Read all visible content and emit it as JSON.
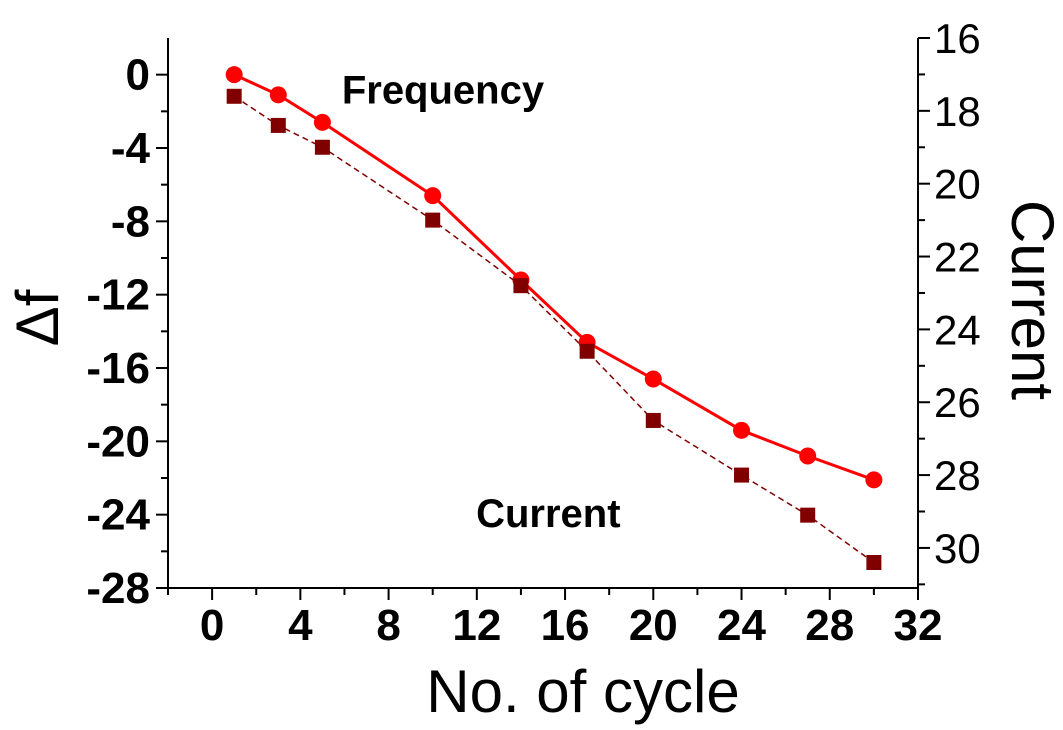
{
  "chart_data": {
    "type": "line",
    "xlabel": "No. of cycle",
    "ylabel_left": "Δf",
    "ylabel_right": "Current",
    "xlim": [
      -2,
      32
    ],
    "ylim_left": [
      -28,
      2
    ],
    "ylim_right": [
      31.1,
      16
    ],
    "x_ticks": [
      0,
      4,
      8,
      12,
      16,
      20,
      24,
      28,
      32
    ],
    "y_ticks_left": [
      0,
      -4,
      -8,
      -12,
      -16,
      -20,
      -24,
      -28
    ],
    "y_ticks_right": [
      16,
      18,
      20,
      22,
      24,
      26,
      28,
      30
    ],
    "annotations": [
      {
        "text": "Frequency",
        "x": 12,
        "y": -0.8
      },
      {
        "text": "Current",
        "x": 16.5,
        "y": -23.9
      }
    ],
    "series": [
      {
        "axis": "left",
        "marker": "circle",
        "line": "solid",
        "color": "#ff0000",
        "x": [
          1,
          3,
          5,
          10,
          14,
          17,
          20,
          24,
          27,
          30
        ],
        "values": [
          0,
          -1.1,
          -2.6,
          -6.6,
          -11.2,
          -14.6,
          -16.6,
          -19.4,
          -20.8,
          -22.1
        ]
      },
      {
        "axis": "right",
        "marker": "square",
        "line": "dashed",
        "color": "#800000",
        "x": [
          1,
          3,
          5,
          10,
          14,
          17,
          20,
          24,
          27,
          30
        ],
        "values": [
          17.6,
          18.4,
          19.0,
          21.0,
          22.8,
          24.6,
          26.5,
          28.0,
          29.1,
          30.4
        ]
      }
    ]
  }
}
